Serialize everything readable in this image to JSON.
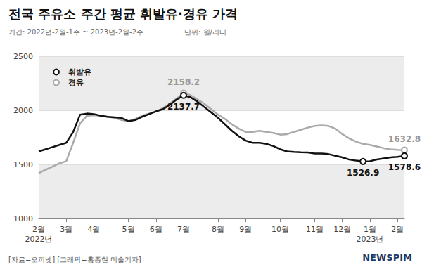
{
  "chart_data": {
    "type": "line",
    "title": "전국 주유소 주간 평균 휘발유·경유 가격",
    "subtitle": "기간: 2022년-2월-1주 ~ 2023년-2월-2주",
    "unit": "단위: 원/리터",
    "source": "[자료=오피넷] [그래픽=홍종현 미술기자]",
    "brand": "NEWSPIM",
    "categories": [
      "2월\n2022년",
      null,
      null,
      null,
      "3월",
      null,
      null,
      null,
      "4월",
      null,
      null,
      null,
      null,
      "5월",
      null,
      null,
      null,
      "6월",
      null,
      null,
      null,
      "7월",
      null,
      null,
      null,
      null,
      "8월",
      null,
      null,
      null,
      "9월",
      null,
      null,
      null,
      null,
      "10월",
      null,
      null,
      null,
      null,
      "11월",
      null,
      null,
      null,
      "12월",
      null,
      null,
      null,
      "1월\n2023년",
      null,
      null,
      null,
      "2월",
      null
    ],
    "series": [
      {
        "name": "휘발유",
        "color": "#111111",
        "values": [
          1620,
          1640,
          1660,
          1680,
          1700,
          1800,
          1960,
          1970,
          1965,
          1950,
          1940,
          1935,
          1930,
          1900,
          1910,
          1940,
          1965,
          1990,
          2010,
          2050,
          2100,
          2137.7,
          2120,
          2080,
          2030,
          1980,
          1930,
          1870,
          1810,
          1760,
          1720,
          1700,
          1700,
          1690,
          1670,
          1640,
          1620,
          1615,
          1612,
          1610,
          1600,
          1600,
          1595,
          1580,
          1565,
          1545,
          1535,
          1526.9,
          1530,
          1545,
          1555,
          1565,
          1570,
          1578.6
        ]
      },
      {
        "name": "경유",
        "color": "#aaaaaa",
        "values": [
          1420,
          1450,
          1480,
          1510,
          1530,
          1700,
          1880,
          1950,
          1955,
          1950,
          1940,
          1930,
          1910,
          1900,
          1920,
          1950,
          1970,
          1990,
          2020,
          2060,
          2110,
          2158.2,
          2140,
          2100,
          2060,
          2010,
          1960,
          1920,
          1870,
          1830,
          1800,
          1800,
          1810,
          1800,
          1790,
          1775,
          1780,
          1800,
          1820,
          1840,
          1855,
          1860,
          1855,
          1830,
          1780,
          1740,
          1710,
          1690,
          1680,
          1665,
          1650,
          1640,
          1635,
          1632.8
        ]
      }
    ],
    "annotations": [
      {
        "series": "경유",
        "index": 21,
        "text": "2158.2"
      },
      {
        "series": "휘발유",
        "index": 21,
        "text": "2137.7"
      },
      {
        "series": "휘발유",
        "index": 47,
        "text": "1526.9"
      },
      {
        "series": "휘발유",
        "index": 53,
        "text": "1578.6"
      },
      {
        "series": "경유",
        "index": 53,
        "text": "1632.8"
      }
    ],
    "ylim": [
      1000,
      2500
    ],
    "yticks": [
      1000,
      1500,
      2000,
      2500
    ],
    "grid": true,
    "legend": "upper left"
  }
}
